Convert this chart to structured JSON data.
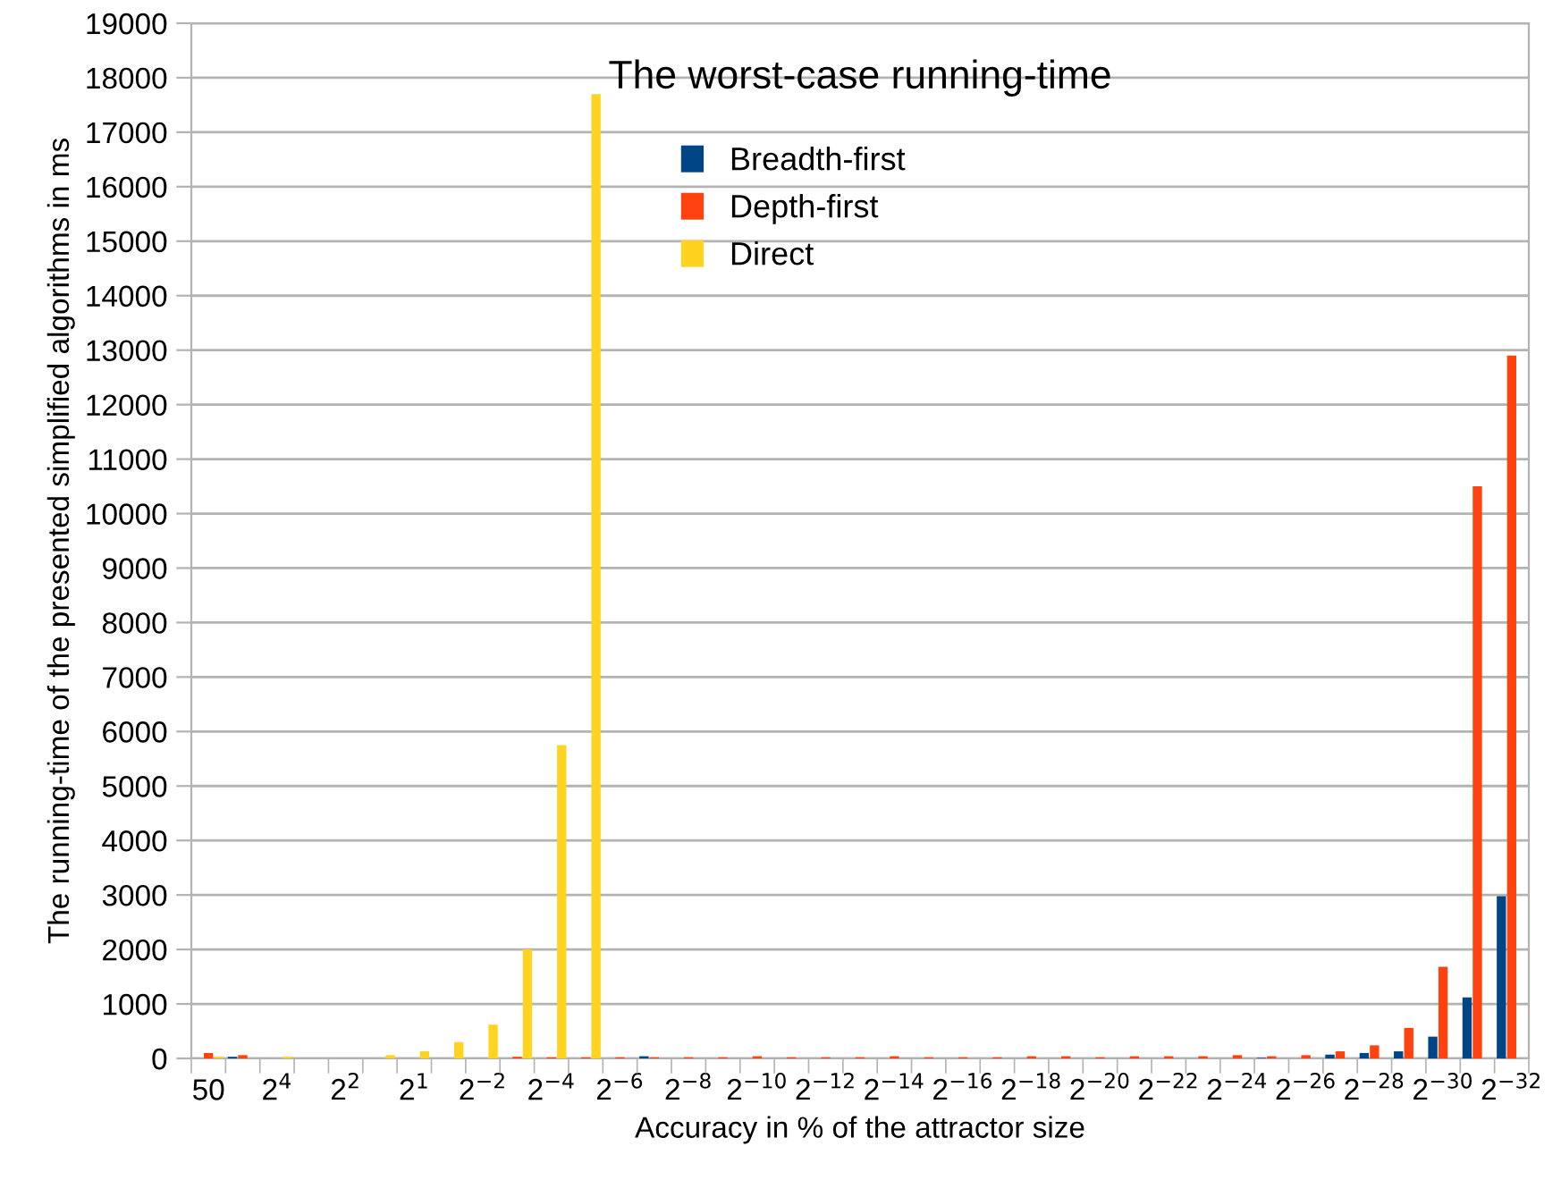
{
  "chart_data": {
    "type": "bar",
    "title": "The worst-case running-time",
    "xlabel": "Accuracy in % of the attractor size",
    "ylabel": "The running-time of the presented simplified algorithms in ms",
    "categories": [
      "50",
      null,
      "2$^{4}$",
      null,
      "2$^{2}$",
      null,
      "2$^{1}$",
      null,
      "2$^{−2}$",
      null,
      "2$^{−4}$",
      null,
      "2$^{−6}$",
      null,
      "2$^{−8}$",
      null,
      "2$^{−10}$",
      null,
      "2$^{−12}$",
      null,
      "2$^{−14}$",
      null,
      "2$^{−16}$",
      null,
      "2$^{−18}$",
      null,
      "2$^{−20}$",
      null,
      "2$^{−22}$",
      null,
      "2$^{−24}$",
      null,
      "2$^{−26}$",
      null,
      "2$^{−28}$",
      null,
      "2$^{−30}$",
      null,
      "2$^{−32}$"
    ],
    "series": [
      {
        "name": "Breadth-first",
        "color": "#004586",
        "values": [
          0,
          30,
          0,
          0,
          0,
          0,
          0,
          0,
          0,
          0,
          0,
          0,
          0,
          40,
          0,
          0,
          0,
          0,
          0,
          0,
          0,
          0,
          0,
          0,
          0,
          0,
          0,
          0,
          0,
          0,
          0,
          10,
          0,
          70,
          100,
          130,
          400,
          1120,
          2980
        ]
      },
      {
        "name": "Depth-first",
        "color": "#ff420e",
        "values": [
          100,
          60,
          0,
          0,
          0,
          0,
          0,
          0,
          0,
          30,
          20,
          20,
          20,
          20,
          20,
          20,
          40,
          20,
          20,
          20,
          40,
          20,
          20,
          20,
          40,
          40,
          20,
          40,
          40,
          40,
          60,
          40,
          60,
          130,
          240,
          560,
          1680,
          10500,
          12900
        ]
      },
      {
        "name": "Direct",
        "color": "#ffd320",
        "values": [
          30,
          0,
          30,
          0,
          0,
          60,
          130,
          300,
          620,
          2000,
          5750,
          17700,
          0,
          0,
          0,
          0,
          0,
          0,
          0,
          0,
          0,
          0,
          0,
          0,
          0,
          0,
          0,
          0,
          0,
          0,
          0,
          0,
          0,
          0,
          0,
          0,
          0,
          0,
          0
        ]
      }
    ],
    "ylim": [
      0,
      19000
    ],
    "yticks": [
      0,
      1000,
      2000,
      3000,
      4000,
      5000,
      6000,
      7000,
      8000,
      9000,
      10000,
      11000,
      12000,
      13000,
      14000,
      15000,
      16000,
      17000,
      18000,
      19000
    ],
    "grid": "y",
    "legend": "top"
  }
}
